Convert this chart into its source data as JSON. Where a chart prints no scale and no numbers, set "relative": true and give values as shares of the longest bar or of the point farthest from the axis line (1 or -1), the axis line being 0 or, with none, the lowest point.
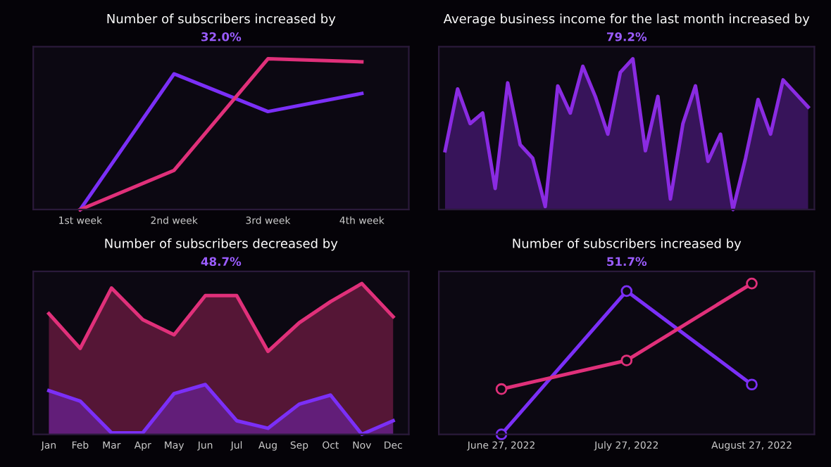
{
  "chart_data": [
    {
      "type": "line",
      "title": "Number of subscribers increased by",
      "subtitle": "32.0%",
      "relative": true,
      "categories": [
        "1st week",
        "2nd week",
        "3rd week",
        "4th week"
      ],
      "legend": false,
      "grid": false,
      "series": [
        {
          "color": "#7b2ff7",
          "values": [
            0,
            0.9,
            0.65,
            0.77
          ]
        },
        {
          "color": "#e0307a",
          "values": [
            0,
            0.26,
            1.0,
            0.98
          ]
        }
      ]
    },
    {
      "type": "area",
      "title": "Average business income for the last month increased by",
      "subtitle": "79.2%",
      "relative": true,
      "legend": false,
      "grid": false,
      "categories": [
        null,
        null,
        null,
        null,
        null,
        null,
        null,
        null,
        null,
        null,
        null,
        null,
        null,
        null,
        null,
        null,
        null,
        null,
        null,
        null,
        null,
        null,
        null,
        null,
        null,
        null,
        null,
        null,
        null,
        null
      ],
      "series": [
        {
          "color": "#8a2be2",
          "values": [
            0.39,
            0.8,
            0.57,
            0.64,
            0.14,
            0.84,
            0.43,
            0.34,
            0.02,
            0.82,
            0.64,
            0.95,
            0.75,
            0.5,
            0.91,
            1.0,
            0.39,
            0.75,
            0.07,
            0.57,
            0.82,
            0.32,
            0.5,
            0,
            0.34,
            0.73,
            0.5,
            0.86,
            0.77,
            0.68
          ]
        }
      ]
    },
    {
      "type": "area",
      "title": "Number of subscribers decreased by",
      "subtitle": "48.7%",
      "relative": true,
      "legend": false,
      "grid": false,
      "categories": [
        "Jan",
        "Feb",
        "Mar",
        "Apr",
        "May",
        "Jun",
        "Jul",
        "Aug",
        "Sep",
        "Oct",
        "Nov",
        "Dec"
      ],
      "series": [
        {
          "color": "#e0307a",
          "values": [
            0.8,
            0.57,
            0.97,
            0.76,
            0.66,
            0.92,
            0.92,
            0.55,
            0.74,
            0.88,
            1.0,
            0.78
          ]
        },
        {
          "color": "#7b2ff7",
          "values": [
            0.29,
            0.22,
            0.01,
            0.01,
            0.27,
            0.33,
            0.09,
            0.04,
            0.2,
            0.26,
            0,
            0.09
          ]
        }
      ]
    },
    {
      "type": "line",
      "title": "Number of subscribers increased by",
      "subtitle": "51.7%",
      "relative": true,
      "legend": false,
      "grid": false,
      "marker": "circle",
      "categories": [
        "June 27, 2022",
        "July 27, 2022",
        "August 27, 2022"
      ],
      "series": [
        {
          "color": "#7b2ff7",
          "values": [
            0,
            0.95,
            0.33
          ]
        },
        {
          "color": "#e0307a",
          "values": [
            0.3,
            0.49,
            1.0
          ]
        }
      ]
    }
  ]
}
